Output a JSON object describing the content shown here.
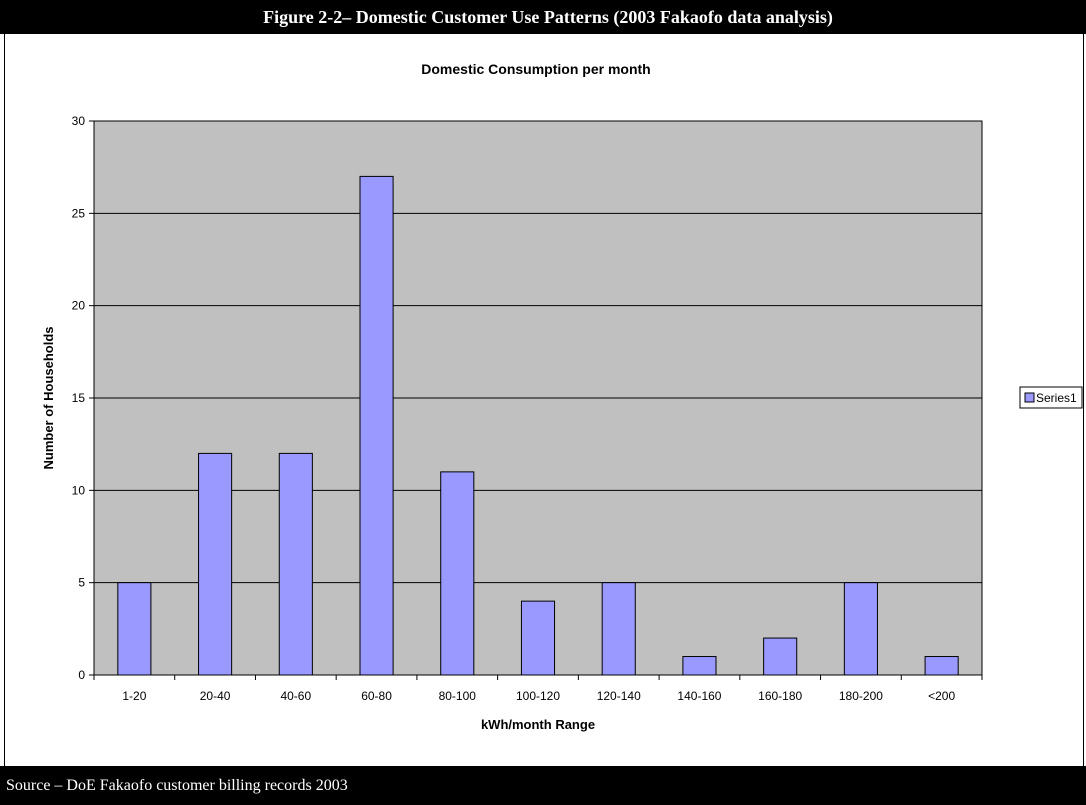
{
  "figure": {
    "caption": "Figure 2-2– Domestic Customer Use Patterns (2003 Fakaofo data analysis)",
    "source": "Source – DoE Fakaofo customer billing records 2003"
  },
  "colors": {
    "bar_fill": "#9999ff",
    "plot_background": "#c0c0c0",
    "gridline": "#000000",
    "frame": "#000000"
  },
  "chart_data": {
    "type": "bar",
    "title": "Domestic Consumption per month",
    "xlabel": "kWh/month Range",
    "ylabel": "Number of Households",
    "categories": [
      "1-20",
      "20-40",
      "40-60",
      "60-80",
      "80-100",
      "100-120",
      "120-140",
      "140-160",
      "160-180",
      "180-200",
      "<200"
    ],
    "series": [
      {
        "name": "Series1",
        "values": [
          5,
          12,
          12,
          27,
          11,
          4,
          5,
          1,
          2,
          5,
          1
        ]
      }
    ],
    "ylim": [
      0,
      30
    ],
    "yticks": [
      0,
      5,
      10,
      15,
      20,
      25,
      30
    ],
    "grid": true,
    "legend_position": "right"
  }
}
